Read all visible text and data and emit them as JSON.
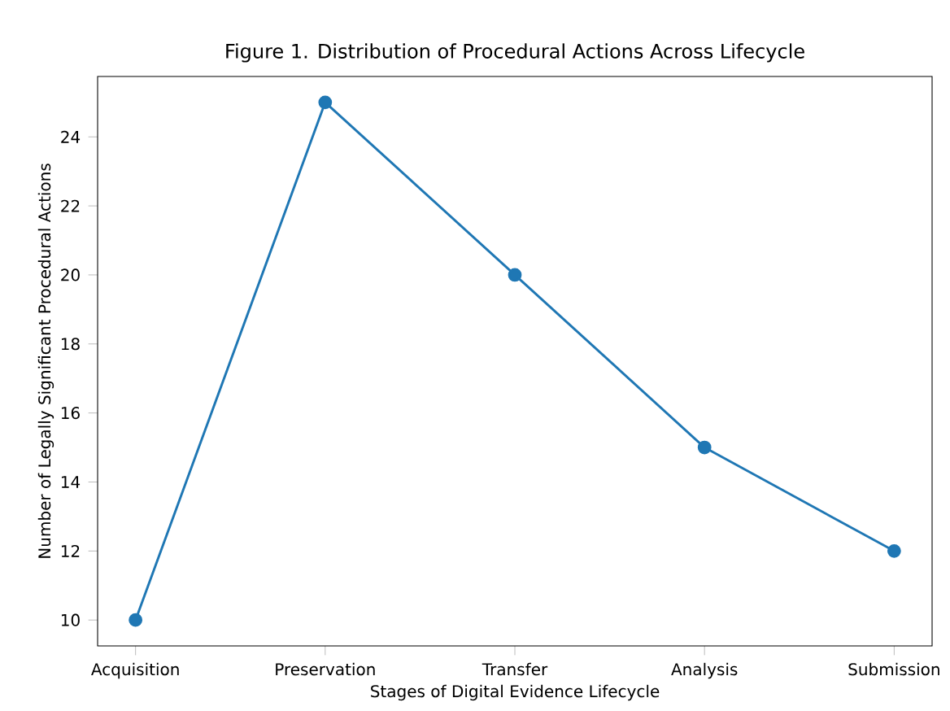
{
  "chart_data": {
    "type": "line",
    "title": "Figure 1. Distribution of Procedural Actions Across Lifecycle",
    "xlabel": "Stages of Digital Evidence Lifecycle",
    "ylabel": "Number of Legally Significant Procedural Actions",
    "categories": [
      "Acquisition",
      "Preservation",
      "Transfer",
      "Analysis",
      "Submission"
    ],
    "values": [
      10,
      25,
      20,
      15,
      12
    ],
    "color": "#1f77b4",
    "marker": "circle",
    "line_style": "solid",
    "ylim": [
      9.25,
      25.75
    ],
    "yticks": [
      10,
      12,
      14,
      16,
      18,
      20,
      22,
      24
    ]
  }
}
